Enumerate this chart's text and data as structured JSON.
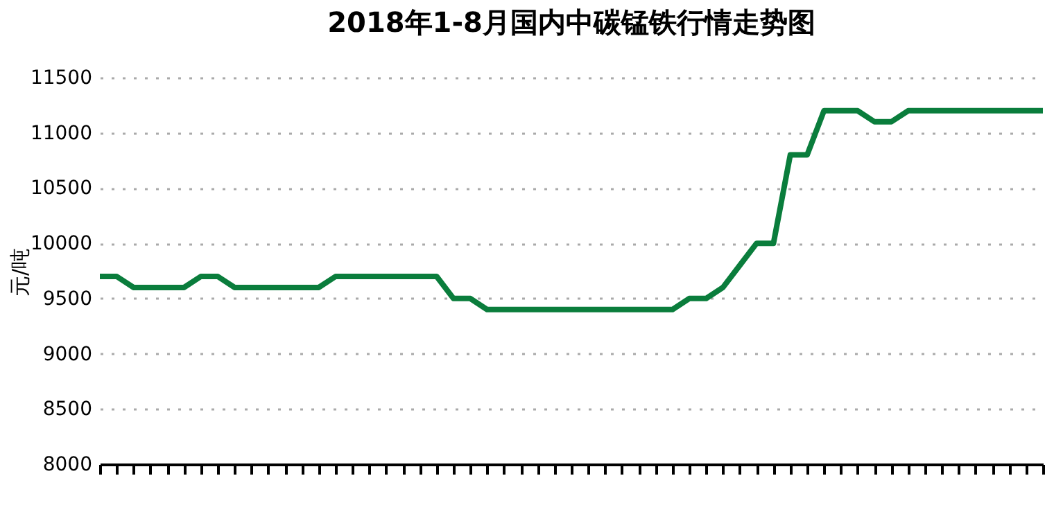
{
  "chart_data": {
    "type": "line",
    "title": "2018年1-8月国内中碳锰铁行情走势图",
    "ylabel": "元/吨",
    "categories": [
      null,
      null,
      null,
      null,
      null,
      null,
      null,
      null,
      null,
      null,
      null,
      null,
      null,
      null,
      null,
      null,
      null,
      null,
      null,
      null,
      null,
      null,
      null,
      null,
      null,
      null,
      null,
      null,
      null,
      null,
      null,
      null,
      null,
      null,
      null,
      null,
      null,
      null,
      null,
      null,
      null,
      null,
      null,
      null,
      null,
      null,
      null,
      null,
      null,
      null,
      null,
      null,
      null,
      null,
      null,
      null,
      null
    ],
    "series": [
      {
        "color": "#0a7d3c",
        "values": [
          9700,
          9700,
          9600,
          9600,
          9600,
          9600,
          9700,
          9700,
          9600,
          9600,
          9600,
          9600,
          9600,
          9600,
          9700,
          9700,
          9700,
          9700,
          9700,
          9700,
          9700,
          9500,
          9500,
          9400,
          9400,
          9400,
          9400,
          9400,
          9400,
          9400,
          9400,
          9400,
          9400,
          9400,
          9400,
          9500,
          9500,
          9600,
          9800,
          10000,
          10000,
          10800,
          10800,
          11200,
          11200,
          11200,
          11100,
          11100,
          11200,
          11200,
          11200,
          11200,
          11200,
          11200,
          11200,
          11200,
          11200
        ]
      }
    ],
    "ylim": [
      8000,
      11500
    ],
    "yticks": [
      8000,
      8500,
      9000,
      9500,
      10000,
      10500,
      11000,
      11500
    ],
    "grid": "y",
    "line_style": "solid",
    "marker": "none"
  }
}
